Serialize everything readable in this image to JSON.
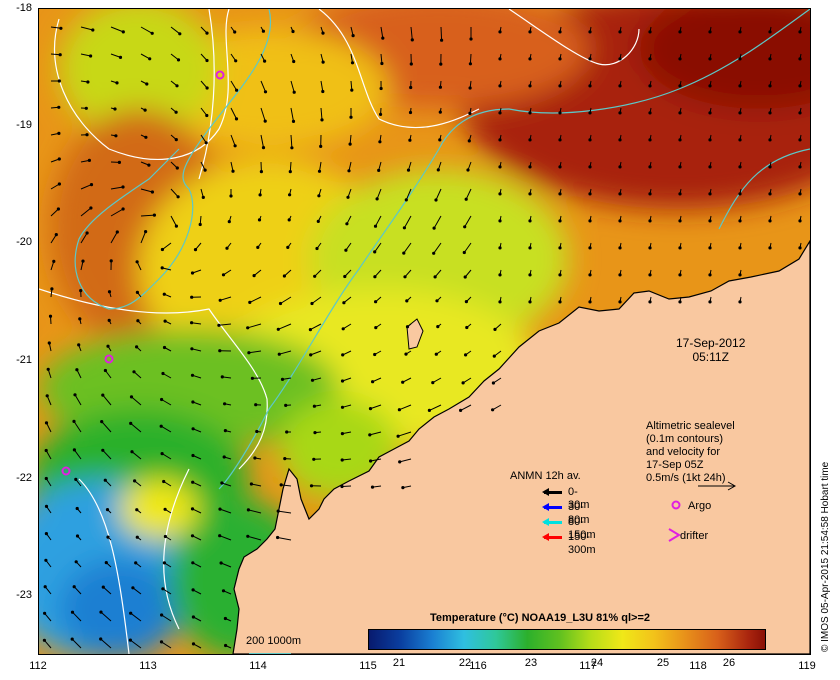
{
  "map": {
    "title_date": "17-Sep-2012",
    "title_time": "05:11Z",
    "y_ticks": [
      "-18",
      "-19",
      "-20",
      "-21",
      "-22",
      "-23"
    ],
    "x_ticks": [
      "112",
      "113",
      "114",
      "115",
      "116",
      "117",
      "118",
      "119"
    ],
    "lon_range": [
      112,
      119
    ],
    "lat_range": [
      -23.5,
      -18
    ],
    "colors": {
      "sea_warm": "#e89518",
      "sea_hot": "#8a1006",
      "sea_mid": "#f0e818",
      "sea_cool": "#2cb02c",
      "sea_cold": "#2fa0e0",
      "land": "#f9c8a0",
      "sealevel_contour": "#ffffff",
      "bathymetry": "#5cc8c8"
    }
  },
  "altimetry": {
    "line1": "Altimetric sealevel",
    "line2": "(0.1m contours)",
    "line3": "and velocity for",
    "line4": "17-Sep 05Z",
    "line5": "0.5m/s (1kt 24h)"
  },
  "anmn": {
    "title": "ANMN 12h av.",
    "items": [
      {
        "label": "0-30m",
        "color": "#000000"
      },
      {
        "label": "30-80m",
        "color": "#0000ff"
      },
      {
        "label": "80-150m",
        "color": "#00e0e0"
      },
      {
        "label": "150-300m",
        "color": "#ff0000"
      }
    ]
  },
  "markers": {
    "argo_label": "Argo",
    "drifter_label": "drifter",
    "argo_color": "#e020e0",
    "drifter_color": "#e020e0"
  },
  "bathymetry_scale": {
    "label": "200  1000m"
  },
  "colorbar": {
    "title": "Temperature (°C) NOAA19_L3U 81% ql>=2",
    "ticks": [
      "21",
      "22",
      "23",
      "24",
      "25",
      "26"
    ],
    "range": [
      20.5,
      26.5
    ]
  },
  "credit": "© IMOS 05-Apr-2015 21:54:58 Hobart time"
}
